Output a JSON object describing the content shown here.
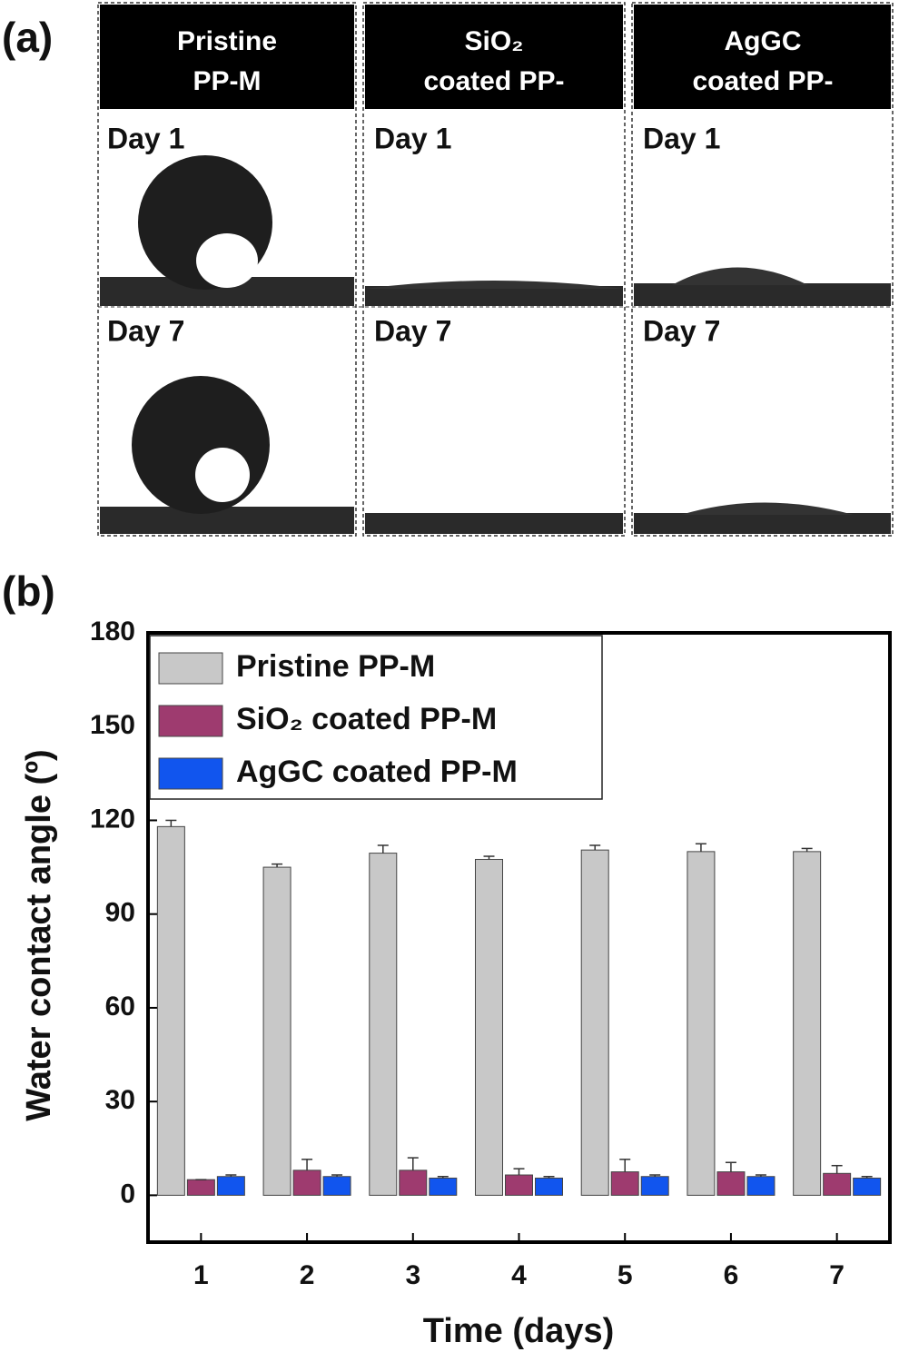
{
  "panel_a": {
    "label": "(a)",
    "columns": [
      {
        "header": [
          "Pristine",
          "PP-M"
        ],
        "rows": [
          "Day 1",
          "Day 7"
        ]
      },
      {
        "header": [
          "SiO₂",
          "coated PP-"
        ],
        "rows": [
          "Day 1",
          "Day 7"
        ]
      },
      {
        "header": [
          "AgGC",
          "coated PP-"
        ],
        "rows": [
          "Day 1",
          "Day 7"
        ]
      }
    ]
  },
  "chart_data": {
    "type": "bar",
    "panel_label": "(b)",
    "x_label": "Time (days)",
    "y_label": "Water contact angle (º)",
    "categories": [
      "1",
      "2",
      "3",
      "4",
      "5",
      "6",
      "7"
    ],
    "series": [
      {
        "name": "Pristine PP-M",
        "color": "#c8c8c8",
        "values": [
          118,
          105,
          109.5,
          107.5,
          110.5,
          110,
          110
        ],
        "errors": [
          2,
          1,
          2.5,
          1,
          1.5,
          2.5,
          1
        ]
      },
      {
        "name": "SiO₂ coated PP-M",
        "color": "#9e3b6f",
        "values": [
          5,
          8,
          8,
          6.5,
          7.5,
          7.5,
          7
        ],
        "errors": [
          0,
          3.5,
          4,
          2,
          4,
          3,
          2.5
        ]
      },
      {
        "name": "AgGC coated PP-M",
        "color": "#1155ee",
        "values": [
          6,
          6,
          5.5,
          5.5,
          6,
          6,
          5.5
        ],
        "errors": [
          0.5,
          0.5,
          0.5,
          0.5,
          0.5,
          0.5,
          0.5
        ]
      }
    ],
    "ylim": [
      -15,
      180
    ],
    "yticks": [
      0,
      30,
      60,
      90,
      120,
      150,
      180
    ],
    "legend": "upper-left"
  }
}
